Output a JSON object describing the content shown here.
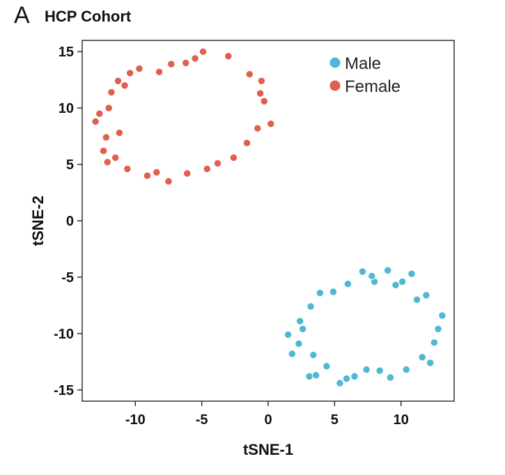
{
  "panel_letter": "A",
  "chart_data": {
    "type": "scatter",
    "title": "HCP Cohort",
    "xlabel": "tSNE-1",
    "ylabel": "tSNE-2",
    "xlim": [
      -14,
      14
    ],
    "ylim": [
      -16,
      16
    ],
    "x_ticks": [
      -10,
      -5,
      0,
      5,
      10
    ],
    "y_ticks": [
      15,
      10,
      5,
      0,
      -5,
      -10,
      -15
    ],
    "legend_position": "top-right",
    "grid": false,
    "series": [
      {
        "name": "Male",
        "color": "#4fb8d4",
        "points": [
          [
            1.5,
            -10.1
          ],
          [
            1.8,
            -11.8
          ],
          [
            3.1,
            -13.8
          ],
          [
            3.6,
            -13.7
          ],
          [
            5.4,
            -14.4
          ],
          [
            7.1,
            -4.5
          ],
          [
            9.0,
            -4.4
          ],
          [
            10.8,
            -4.7
          ],
          [
            13.1,
            -8.4
          ],
          [
            12.2,
            -12.6
          ],
          [
            9.2,
            -13.9
          ],
          [
            4.9,
            -6.3
          ],
          [
            3.9,
            -6.4
          ],
          [
            11.9,
            -6.6
          ],
          [
            2.4,
            -8.9
          ],
          [
            2.3,
            -10.9
          ],
          [
            12.5,
            -10.8
          ],
          [
            5.9,
            -14.0
          ],
          [
            6.5,
            -13.8
          ],
          [
            8.4,
            -13.3
          ],
          [
            4.4,
            -12.9
          ],
          [
            3.4,
            -11.9
          ],
          [
            10.4,
            -13.2
          ],
          [
            6.0,
            -5.6
          ],
          [
            8.0,
            -5.4
          ],
          [
            10.1,
            -5.4
          ],
          [
            11.2,
            -7.0
          ],
          [
            12.8,
            -9.6
          ],
          [
            2.6,
            -9.6
          ],
          [
            3.2,
            -7.6
          ],
          [
            7.8,
            -4.9
          ],
          [
            9.6,
            -5.7
          ],
          [
            11.6,
            -12.1
          ],
          [
            7.4,
            -13.2
          ]
        ]
      },
      {
        "name": "Female",
        "color": "#e0604f",
        "points": [
          [
            -13.0,
            8.8
          ],
          [
            -12.7,
            9.5
          ],
          [
            -12.4,
            6.2
          ],
          [
            -12.1,
            5.2
          ],
          [
            -11.8,
            11.4
          ],
          [
            -11.3,
            12.4
          ],
          [
            -10.4,
            13.1
          ],
          [
            -9.7,
            13.5
          ],
          [
            -8.2,
            13.2
          ],
          [
            -7.3,
            13.9
          ],
          [
            -6.2,
            14.0
          ],
          [
            -4.9,
            15.0
          ],
          [
            -3.0,
            14.6
          ],
          [
            -0.5,
            12.4
          ],
          [
            0.2,
            8.6
          ],
          [
            -0.3,
            10.6
          ],
          [
            -2.6,
            5.6
          ],
          [
            -4.6,
            4.6
          ],
          [
            -7.5,
            3.5
          ],
          [
            -9.1,
            4.0
          ],
          [
            -10.6,
            4.6
          ],
          [
            -11.5,
            5.6
          ],
          [
            -12.2,
            7.4
          ],
          [
            -8.4,
            4.3
          ],
          [
            -6.1,
            4.2
          ],
          [
            -3.8,
            5.1
          ],
          [
            -1.6,
            6.9
          ],
          [
            -0.8,
            8.2
          ],
          [
            -0.6,
            11.3
          ],
          [
            -1.4,
            13.0
          ],
          [
            -5.5,
            14.4
          ],
          [
            -10.8,
            12.0
          ],
          [
            -12.0,
            10.0
          ],
          [
            -11.2,
            7.8
          ]
        ]
      }
    ]
  }
}
